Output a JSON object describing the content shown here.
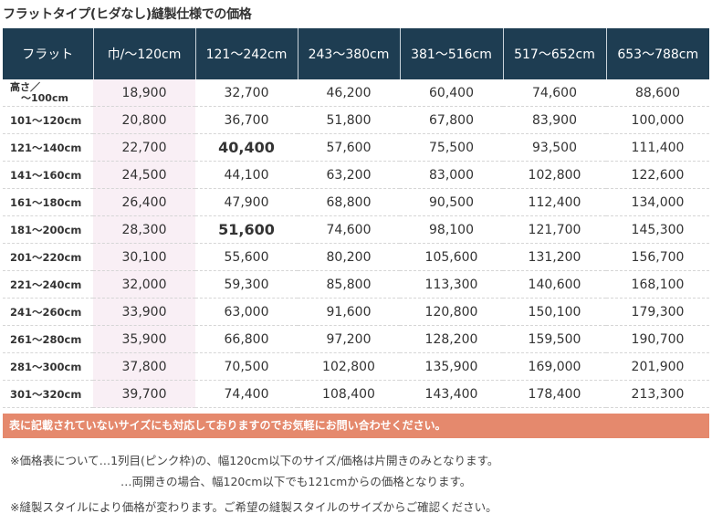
{
  "title": "フラットタイプ(ヒダなし)縫製仕様での価格",
  "table": {
    "headers": [
      "フラット",
      "巾/～120cm",
      "121～242cm",
      "243～380cm",
      "381～516cm",
      "517～652cm",
      "653～788cm"
    ],
    "first_row_label_line1": "高さ／",
    "first_row_label_line2": "～100cm",
    "rows": [
      {
        "label": "",
        "values": [
          "18,900",
          "32,700",
          "46,200",
          "60,400",
          "74,600",
          "88,600"
        ]
      },
      {
        "label": "101～120cm",
        "values": [
          "20,800",
          "36,700",
          "51,800",
          "67,800",
          "83,900",
          "100,000"
        ]
      },
      {
        "label": "121～140cm",
        "values": [
          "22,700",
          "40,400",
          "57,600",
          "75,500",
          "93,500",
          "111,400"
        ]
      },
      {
        "label": "141～160cm",
        "values": [
          "24,500",
          "44,100",
          "63,200",
          "83,000",
          "102,800",
          "122,600"
        ]
      },
      {
        "label": "161～180cm",
        "values": [
          "26,400",
          "47,900",
          "68,800",
          "90,500",
          "112,400",
          "134,000"
        ]
      },
      {
        "label": "181～200cm",
        "values": [
          "28,300",
          "51,600",
          "74,600",
          "98,100",
          "121,700",
          "145,300"
        ]
      },
      {
        "label": "201～220cm",
        "values": [
          "30,100",
          "55,600",
          "80,200",
          "105,600",
          "131,200",
          "156,700"
        ]
      },
      {
        "label": "221～240cm",
        "values": [
          "32,000",
          "59,300",
          "85,800",
          "113,300",
          "140,600",
          "168,100"
        ]
      },
      {
        "label": "241～260cm",
        "values": [
          "33,900",
          "63,000",
          "91,600",
          "120,800",
          "150,100",
          "179,300"
        ]
      },
      {
        "label": "261～280cm",
        "values": [
          "35,900",
          "66,800",
          "97,200",
          "128,200",
          "159,500",
          "190,700"
        ]
      },
      {
        "label": "281～300cm",
        "values": [
          "37,800",
          "70,500",
          "102,800",
          "135,900",
          "169,000",
          "201,900"
        ]
      },
      {
        "label": "301～320cm",
        "values": [
          "39,700",
          "74,400",
          "108,400",
          "143,400",
          "178,400",
          "213,300"
        ]
      }
    ]
  },
  "colors": {
    "header_bg": "#1e3d52",
    "pink_col": "#f9eff5",
    "banner_bg": "#e5896d"
  },
  "banner": "表に記載されていないサイズにも対応しておりますのでお気軽にお問い合わせください。",
  "notes": {
    "line1": "※価格表について…1列目(ピンク枠)の、幅120cm以下のサイズ/価格は片開きのみとなります。",
    "line2": "…両開きの場合、幅120cm以下でも121cmからの価格となります。",
    "line3": "※縫製スタイルにより価格が変わります。ご希望の縫製スタイルのサイズからご確認ください。"
  }
}
